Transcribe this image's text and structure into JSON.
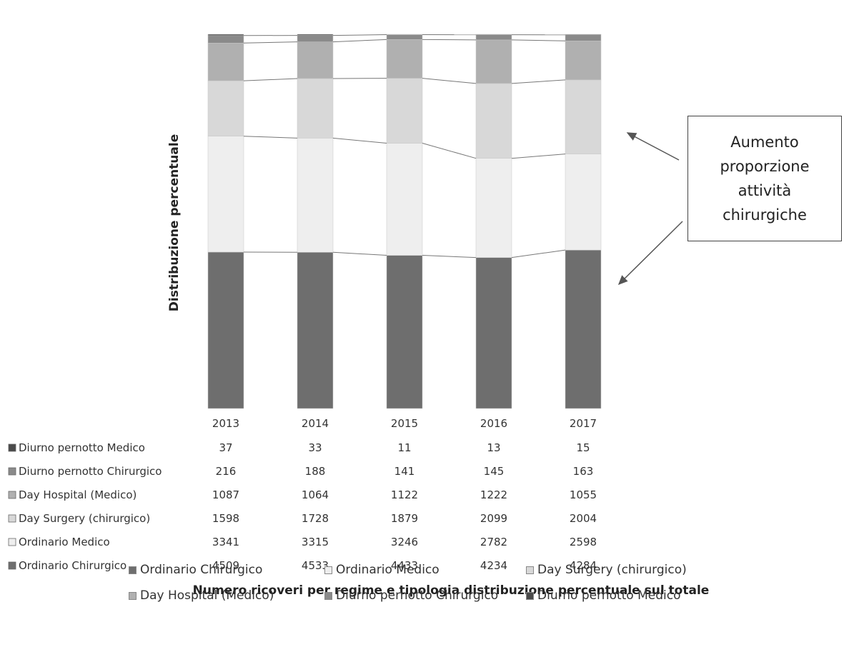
{
  "chart_data": {
    "type": "bar",
    "stacked": true,
    "normalized_percent": true,
    "title": "Numero ricoveri per regime e tipologia distribuzione percentuale sul totale",
    "ylabel": "Distribuzione percentuale",
    "categories": [
      "2013",
      "2014",
      "2015",
      "2016",
      "2017"
    ],
    "series": [
      {
        "name": "Ordinario Chirurgico",
        "values": [
          4509,
          4533,
          4433,
          4234,
          4284
        ],
        "color": "#6e6e6e"
      },
      {
        "name": "Ordinario Medico",
        "values": [
          3341,
          3315,
          3246,
          2782,
          2598
        ],
        "color": "#eeeeee"
      },
      {
        "name": "Day Surgery (chirurgico)",
        "values": [
          1598,
          1728,
          1879,
          2099,
          2004
        ],
        "color": "#d8d8d8"
      },
      {
        "name": "Day Hospital (Medico)",
        "values": [
          1087,
          1064,
          1122,
          1222,
          1055
        ],
        "color": "#b0b0b0"
      },
      {
        "name": "Diurno pernotto Chirurgico",
        "values": [
          216,
          188,
          141,
          145,
          163
        ],
        "color": "#8a8a8a"
      },
      {
        "name": "Diurno pernotto Medico",
        "values": [
          37,
          33,
          11,
          13,
          15
        ],
        "color": "#4a4a4a"
      }
    ],
    "table_row_order": [
      "Diurno pernotto Medico",
      "Diurno pernotto Chirurgico",
      "Day Hospital (Medico)",
      "Day Surgery (chirurgico)",
      "Ordinario Medico",
      "Ordinario Chirurgico"
    ],
    "legend_position": "bottom",
    "grid": false
  },
  "annotation": {
    "lines": [
      "Aumento",
      "proporzione",
      "attività",
      "chirurgiche"
    ]
  }
}
